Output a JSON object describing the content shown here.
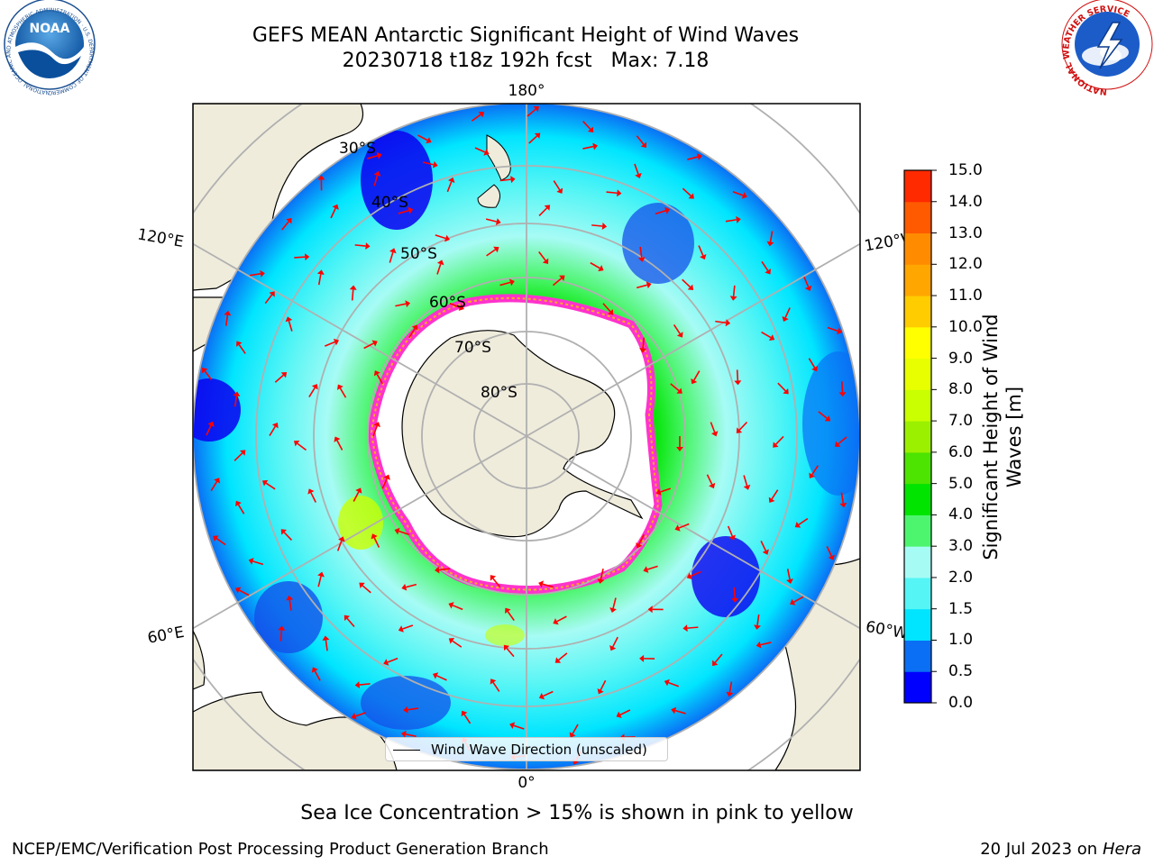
{
  "title": {
    "line1": "GEFS MEAN Antarctic Significant Height of Wind Waves",
    "line2": "20230718 t18z 192h fcst   Max: 7.18"
  },
  "logos": {
    "left": "NOAA",
    "left_ring_text": "NATIONAL OCEANIC AND ATMOSPHERIC ADMINISTRATION · U.S. DEPARTMENT OF COMMERCE",
    "right_ring_text": "NATIONAL WEATHER SERVICE"
  },
  "map": {
    "projection": "south polar stereographic",
    "longitude_labels": [
      "180°",
      "120°E",
      "120°W",
      "60°E",
      "60°W",
      "0°"
    ],
    "latitude_labels": [
      "30°S",
      "40°S",
      "50°S",
      "60°S",
      "70°S",
      "80°S"
    ],
    "colors": {
      "land": "#efecdc",
      "ice_free_center": "#ffffff",
      "sea_ice_edge": [
        "#ff33cc",
        "#ffaa22"
      ],
      "arrow": "#ff0000",
      "grid": "#b0b0b0"
    }
  },
  "legend": {
    "label": "Wind Wave Direction (unscaled)"
  },
  "colorbar": {
    "label_line1": "Significant Height of Wind",
    "label_line2": "Waves [m]",
    "ticks": [
      "0.0",
      "0.5",
      "1.0",
      "1.5",
      "2.0",
      "3.0",
      "4.0",
      "5.0",
      "6.0",
      "7.0",
      "8.0",
      "9.0",
      "10.0",
      "11.0",
      "12.0",
      "13.0",
      "14.0",
      "15.0"
    ],
    "colors": [
      "#0000ff",
      "#0a6ff5",
      "#00e5ff",
      "#55f5f5",
      "#a7fbf5",
      "#4df56f",
      "#00e400",
      "#4ce400",
      "#9bf000",
      "#c9ff00",
      "#e8ff00",
      "#ffff00",
      "#ffcc00",
      "#ffa600",
      "#ff8c00",
      "#ff5a00",
      "#ff2a00"
    ]
  },
  "note": "Sea Ice Concentration > 15% is shown in pink to yellow",
  "footer": {
    "left": "NCEP/EMC/Verification Post Processing Product Generation Branch",
    "right_date": "20 Jul 2023 on ",
    "right_machine": "Hera"
  }
}
